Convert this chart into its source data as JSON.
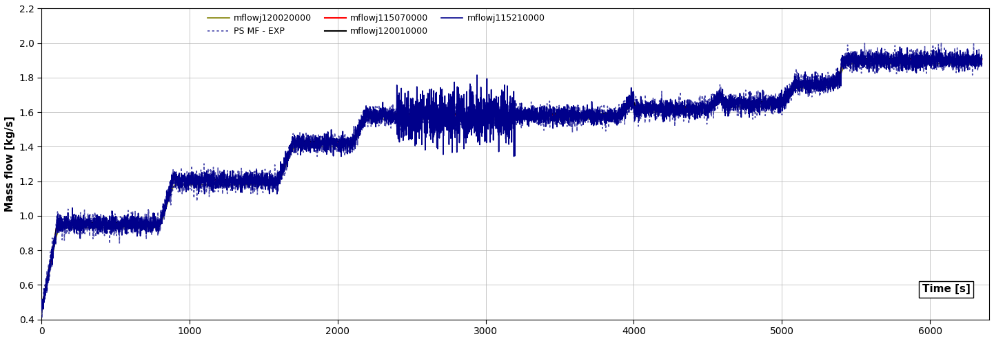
{
  "ylabel": "Mass flow [kg/s]",
  "xlabel_text": "Time [s]",
  "xlim": [
    0,
    6400
  ],
  "ylim": [
    0.4,
    2.2
  ],
  "yticks": [
    0.4,
    0.6,
    0.8,
    1.0,
    1.2,
    1.4,
    1.6,
    1.8,
    2.0,
    2.2
  ],
  "xticks": [
    0,
    1000,
    2000,
    3000,
    4000,
    5000,
    6000
  ],
  "legend_entries": [
    {
      "label": "mflowj115210000",
      "color": "#00008B",
      "lw": 1.2,
      "ls": "solid"
    },
    {
      "label": "mflowj115070000",
      "color": "#FF0000",
      "lw": 1.5,
      "ls": "solid"
    },
    {
      "label": "mflowj120010000",
      "color": "#000000",
      "lw": 1.5,
      "ls": "solid"
    },
    {
      "label": "mflowj120020000",
      "color": "#808000",
      "lw": 1.2,
      "ls": "solid"
    },
    {
      "label": "PS MF - EXP",
      "color": "#00008B",
      "lw": 1.2,
      "ls": "dotted"
    }
  ],
  "grid_color": "#b0b0b0",
  "background_color": "#ffffff",
  "seed": 42
}
